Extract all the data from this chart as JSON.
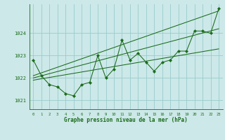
{
  "title": "Graphe pression niveau de la mer (hPa)",
  "bg_color": "#cce8e8",
  "grid_color": "#99cccc",
  "line_color": "#1a6b1a",
  "xlim": [
    -0.5,
    23.5
  ],
  "ylim": [
    1020.6,
    1025.3
  ],
  "yticks": [
    1021,
    1022,
    1023,
    1024
  ],
  "xticks": [
    0,
    1,
    2,
    3,
    4,
    5,
    6,
    7,
    8,
    9,
    10,
    11,
    12,
    13,
    14,
    15,
    16,
    17,
    18,
    19,
    20,
    21,
    22,
    23
  ],
  "series1": {
    "x": [
      0,
      1,
      2,
      3,
      4,
      5,
      6,
      7,
      8,
      9,
      10,
      11,
      12,
      13,
      14,
      15,
      16,
      17,
      18,
      19,
      20,
      21,
      22,
      23
    ],
    "y": [
      1022.8,
      1022.1,
      1021.7,
      1021.6,
      1021.3,
      1021.2,
      1021.7,
      1021.8,
      1023.0,
      1022.0,
      1022.4,
      1023.7,
      1022.8,
      1023.1,
      1022.7,
      1022.3,
      1022.7,
      1022.8,
      1023.2,
      1023.2,
      1024.1,
      1024.1,
      1024.0,
      1025.1
    ]
  },
  "line1": {
    "x": [
      0,
      23
    ],
    "y": [
      1022.1,
      1025.0
    ]
  },
  "line2": {
    "x": [
      0,
      23
    ],
    "y": [
      1021.9,
      1023.3
    ]
  },
  "line3": {
    "x": [
      0,
      23
    ],
    "y": [
      1022.0,
      1024.2
    ]
  }
}
